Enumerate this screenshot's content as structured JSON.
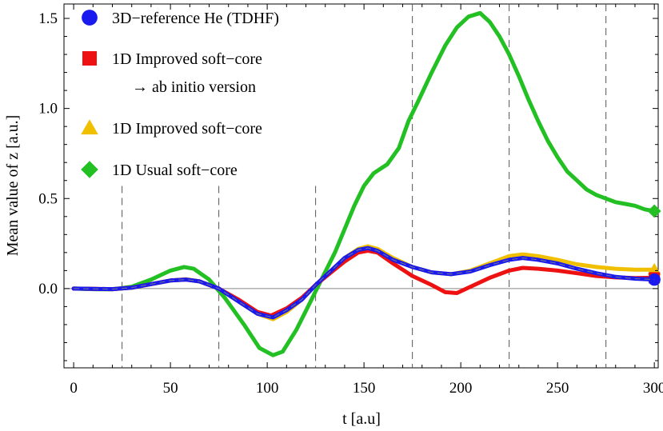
{
  "chart_data": {
    "type": "line",
    "xlabel": "t  [a.u]",
    "ylabel": "Mean value  of  z    [a.u.]",
    "xlim": [
      -5,
      302
    ],
    "ylim": [
      -0.44,
      1.58
    ],
    "xticks": [
      0,
      50,
      100,
      150,
      200,
      250,
      300
    ],
    "xtick_labels": [
      "0",
      "50",
      "100",
      "150",
      "200",
      "250",
      "300"
    ],
    "yticks": [
      0.0,
      0.5,
      1.0,
      1.5
    ],
    "ytick_labels": [
      "0.0",
      "0.5",
      "1.0",
      "1.5"
    ],
    "vlines": [
      25,
      75,
      125,
      175,
      225,
      275
    ],
    "hline": 0,
    "legend_position": "top-left",
    "series": [
      {
        "name": "1D Usual soft−core",
        "color": "#22c022",
        "marker": "diamond",
        "points": [
          [
            0,
            0
          ],
          [
            10,
            -0.003
          ],
          [
            20,
            -0.004
          ],
          [
            30,
            0.01
          ],
          [
            40,
            0.05
          ],
          [
            50,
            0.1
          ],
          [
            57,
            0.12
          ],
          [
            62,
            0.11
          ],
          [
            70,
            0.05
          ],
          [
            78,
            -0.05
          ],
          [
            88,
            -0.2
          ],
          [
            96,
            -0.33
          ],
          [
            103,
            -0.37
          ],
          [
            108,
            -0.35
          ],
          [
            115,
            -0.23
          ],
          [
            122,
            -0.08
          ],
          [
            128,
            0.05
          ],
          [
            135,
            0.2
          ],
          [
            140,
            0.33
          ],
          [
            145,
            0.46
          ],
          [
            150,
            0.57
          ],
          [
            155,
            0.64
          ],
          [
            162,
            0.69
          ],
          [
            168,
            0.78
          ],
          [
            173,
            0.93
          ],
          [
            178,
            1.04
          ],
          [
            185,
            1.2
          ],
          [
            192,
            1.35
          ],
          [
            198,
            1.45
          ],
          [
            204,
            1.51
          ],
          [
            210,
            1.53
          ],
          [
            215,
            1.48
          ],
          [
            220,
            1.4
          ],
          [
            225,
            1.3
          ],
          [
            230,
            1.18
          ],
          [
            235,
            1.05
          ],
          [
            240,
            0.93
          ],
          [
            245,
            0.82
          ],
          [
            250,
            0.73
          ],
          [
            255,
            0.65
          ],
          [
            260,
            0.6
          ],
          [
            265,
            0.55
          ],
          [
            270,
            0.52
          ],
          [
            275,
            0.5
          ],
          [
            280,
            0.48
          ],
          [
            285,
            0.47
          ],
          [
            290,
            0.46
          ],
          [
            295,
            0.44
          ],
          [
            300,
            0.43
          ]
        ]
      },
      {
        "name": "1D Improved soft−core",
        "color": "#f0c000",
        "marker": "triangle",
        "points": [
          [
            0,
            0
          ],
          [
            10,
            -0.002
          ],
          [
            20,
            -0.003
          ],
          [
            30,
            0.005
          ],
          [
            40,
            0.025
          ],
          [
            50,
            0.045
          ],
          [
            58,
            0.052
          ],
          [
            65,
            0.04
          ],
          [
            75,
            0.0
          ],
          [
            85,
            -0.07
          ],
          [
            95,
            -0.14
          ],
          [
            103,
            -0.17
          ],
          [
            110,
            -0.13
          ],
          [
            118,
            -0.06
          ],
          [
            125,
            0.02
          ],
          [
            133,
            0.1
          ],
          [
            140,
            0.17
          ],
          [
            147,
            0.22
          ],
          [
            152,
            0.235
          ],
          [
            157,
            0.22
          ],
          [
            165,
            0.17
          ],
          [
            175,
            0.12
          ],
          [
            185,
            0.09
          ],
          [
            195,
            0.08
          ],
          [
            205,
            0.1
          ],
          [
            215,
            0.14
          ],
          [
            225,
            0.18
          ],
          [
            232,
            0.19
          ],
          [
            240,
            0.18
          ],
          [
            250,
            0.16
          ],
          [
            260,
            0.135
          ],
          [
            270,
            0.12
          ],
          [
            280,
            0.11
          ],
          [
            290,
            0.105
          ],
          [
            300,
            0.105
          ]
        ]
      },
      {
        "name": "1D Improved soft−core → ab initio version",
        "color": "#ee1111",
        "marker": "square",
        "points": [
          [
            0,
            0
          ],
          [
            10,
            -0.002
          ],
          [
            20,
            -0.003
          ],
          [
            30,
            0.005
          ],
          [
            40,
            0.025
          ],
          [
            50,
            0.045
          ],
          [
            58,
            0.05
          ],
          [
            65,
            0.04
          ],
          [
            75,
            0.0
          ],
          [
            85,
            -0.06
          ],
          [
            95,
            -0.13
          ],
          [
            102,
            -0.15
          ],
          [
            110,
            -0.11
          ],
          [
            118,
            -0.05
          ],
          [
            125,
            0.02
          ],
          [
            133,
            0.09
          ],
          [
            140,
            0.15
          ],
          [
            147,
            0.2
          ],
          [
            152,
            0.21
          ],
          [
            157,
            0.2
          ],
          [
            165,
            0.14
          ],
          [
            175,
            0.07
          ],
          [
            185,
            0.02
          ],
          [
            192,
            -0.02
          ],
          [
            198,
            -0.025
          ],
          [
            205,
            0.01
          ],
          [
            215,
            0.06
          ],
          [
            225,
            0.1
          ],
          [
            232,
            0.115
          ],
          [
            240,
            0.11
          ],
          [
            250,
            0.1
          ],
          [
            260,
            0.085
          ],
          [
            270,
            0.07
          ],
          [
            280,
            0.062
          ],
          [
            290,
            0.058
          ],
          [
            300,
            0.06
          ]
        ]
      },
      {
        "name": "3D−reference He (TDHF)",
        "color": "#1a1aee",
        "marker": "circle",
        "points": [
          [
            0,
            0
          ],
          [
            10,
            -0.002
          ],
          [
            20,
            -0.003
          ],
          [
            30,
            0.005
          ],
          [
            40,
            0.025
          ],
          [
            50,
            0.045
          ],
          [
            58,
            0.05
          ],
          [
            65,
            0.04
          ],
          [
            75,
            0.0
          ],
          [
            85,
            -0.07
          ],
          [
            95,
            -0.14
          ],
          [
            103,
            -0.16
          ],
          [
            110,
            -0.12
          ],
          [
            118,
            -0.06
          ],
          [
            125,
            0.02
          ],
          [
            133,
            0.1
          ],
          [
            140,
            0.17
          ],
          [
            147,
            0.215
          ],
          [
            152,
            0.225
          ],
          [
            157,
            0.21
          ],
          [
            165,
            0.16
          ],
          [
            175,
            0.12
          ],
          [
            185,
            0.09
          ],
          [
            195,
            0.08
          ],
          [
            205,
            0.095
          ],
          [
            215,
            0.13
          ],
          [
            225,
            0.16
          ],
          [
            232,
            0.17
          ],
          [
            240,
            0.16
          ],
          [
            250,
            0.14
          ],
          [
            260,
            0.11
          ],
          [
            270,
            0.085
          ],
          [
            280,
            0.065
          ],
          [
            290,
            0.055
          ],
          [
            300,
            0.05
          ]
        ]
      }
    ],
    "legend": [
      {
        "label": "3D−reference He (TDHF)",
        "color": "#1a1aee",
        "marker": "circle"
      },
      {
        "label": "1D Improved soft−core",
        "color": "#ee1111",
        "marker": "square"
      },
      {
        "label": "→ ab initio version",
        "color": "",
        "marker": ""
      },
      {
        "label": "1D Improved soft−core",
        "color": "#f0c000",
        "marker": "triangle"
      },
      {
        "label": "1D Usual soft−core",
        "color": "#22c022",
        "marker": "diamond"
      }
    ]
  }
}
